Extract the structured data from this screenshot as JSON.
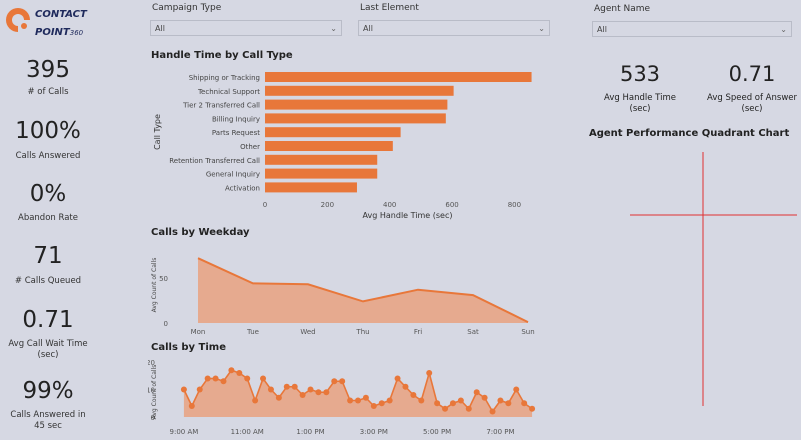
{
  "logo": {
    "line1": "CONTACT",
    "line2": "POINT",
    "suffix": "360"
  },
  "kpis": [
    {
      "value": "395",
      "label": "# of Calls"
    },
    {
      "value": "100%",
      "label": "Calls Answered"
    },
    {
      "value": "0%",
      "label": "Abandon Rate"
    },
    {
      "value": "71",
      "label": "# Calls Queued"
    },
    {
      "value": "0.71",
      "label": "Avg Call Wait Time (sec)"
    },
    {
      "value": "99%",
      "label": "Calls Answered in 45 sec"
    }
  ],
  "slicers": [
    {
      "title": "Campaign Type",
      "value": "All"
    },
    {
      "title": "Last Element",
      "value": "All"
    },
    {
      "title": "Agent Name",
      "value": "All"
    }
  ],
  "right_kpis": [
    {
      "value": "533",
      "label": "Avg Handle Time (sec)"
    },
    {
      "value": "0.71",
      "label": "Avg Speed of Answer (sec)"
    }
  ],
  "quadrant": {
    "title": "Agent Performance Quadrant Chart",
    "line_color": "#e03030"
  },
  "colors": {
    "accent": "#e8773a",
    "area_fill": "#e8a585",
    "background": "#d6d8e3"
  },
  "chart_data": [
    {
      "type": "bar",
      "orientation": "horizontal",
      "title": "Handle Time by Call Type",
      "xlabel": "Avg Handle Time (sec)",
      "ylabel": "Call Type",
      "categories": [
        "Shipping or Tracking",
        "Technical Support",
        "Tier 2 Transferred Call",
        "Billing Inquiry",
        "Parts Request",
        "Other",
        "Retention Transferred Call",
        "General Inquiry",
        "Activation"
      ],
      "values": [
        855,
        605,
        585,
        580,
        435,
        410,
        360,
        360,
        295
      ],
      "xlim": [
        0,
        850
      ],
      "xticks": [
        "0",
        "200",
        "400",
        "600",
        "800"
      ],
      "xtick_values": [
        0,
        200,
        400,
        600,
        800
      ]
    },
    {
      "type": "area",
      "title": "Calls by Weekday",
      "ylabel": "Avg Count of Calls",
      "categories": [
        "Mon",
        "Tue",
        "Wed",
        "Thu",
        "Fri",
        "Sat",
        "Sun"
      ],
      "values": [
        72,
        44,
        43,
        24,
        37,
        31,
        1
      ],
      "ylim": [
        0,
        80
      ],
      "yticks": [
        0,
        50
      ]
    },
    {
      "type": "area",
      "title": "Calls by Time",
      "ylabel": "Avg Count of Calls",
      "ylim": [
        0,
        20
      ],
      "yticks": [
        0,
        10,
        20
      ],
      "xticks": [
        "9:00 AM",
        "11:00 AM",
        "1:00 PM",
        "3:00 PM",
        "5:00 PM",
        "7:00 PM"
      ],
      "xtick_values": [
        9,
        11,
        13,
        15,
        17,
        19
      ],
      "xlim": [
        8.75,
        20.25
      ],
      "x": [
        9.0,
        9.25,
        9.5,
        9.75,
        10.0,
        10.25,
        10.5,
        10.75,
        11.0,
        11.25,
        11.5,
        11.75,
        12.0,
        12.25,
        12.5,
        12.75,
        13.0,
        13.25,
        13.5,
        13.75,
        14.0,
        14.25,
        14.5,
        14.75,
        15.0,
        15.25,
        15.5,
        15.75,
        16.0,
        16.25,
        16.5,
        16.75,
        17.0,
        17.25,
        17.5,
        17.75,
        18.0,
        18.25,
        18.5,
        18.75,
        19.0,
        19.25,
        19.5,
        19.75,
        20.0
      ],
      "values": [
        10,
        4,
        10,
        14,
        14,
        13,
        17,
        16,
        14,
        6,
        14,
        10,
        7,
        11,
        11,
        8,
        10,
        9,
        9,
        13,
        13,
        6,
        6,
        7,
        4,
        5,
        6,
        14,
        11,
        8,
        6,
        16,
        5,
        3,
        5,
        6,
        3,
        9,
        7,
        2,
        6,
        5,
        10,
        5,
        3
      ]
    }
  ]
}
